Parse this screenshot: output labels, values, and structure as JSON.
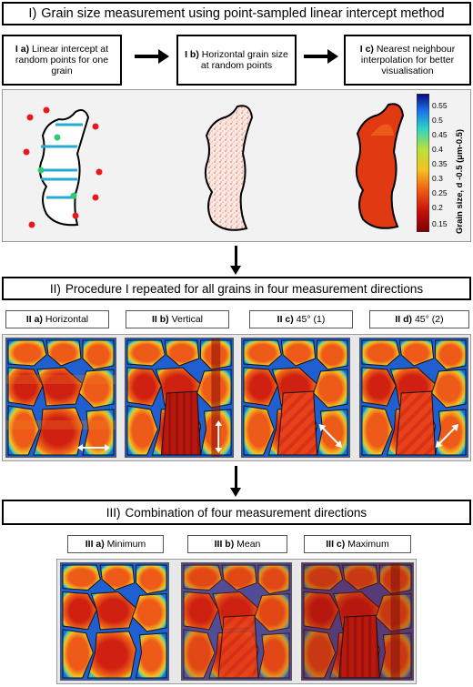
{
  "section1": {
    "prefix": "I)",
    "title": "Grain size measurement using point-sampled linear intercept method",
    "steps": [
      {
        "prefix": "I a)",
        "text": "Linear intercept at random points for one grain"
      },
      {
        "prefix": "I b)",
        "text": "Horizontal grain size at random points"
      },
      {
        "prefix": "I c)",
        "text": "Nearest neighbour interpolation for better visualisation"
      }
    ],
    "colorbar": {
      "ticks": [
        "0.55",
        "0.5",
        "0.45",
        "0.4",
        "0.35",
        "0.3",
        "0.25",
        "0.2",
        "0.15"
      ],
      "label": "Grain size, d -0.5 (μm-0.5)"
    }
  },
  "section2": {
    "prefix": "II)",
    "title": "Procedure I repeated for all grains in four measurement directions",
    "panels": [
      {
        "prefix": "II a)",
        "text": "Horizontal"
      },
      {
        "prefix": "II b)",
        "text": "Vertical"
      },
      {
        "prefix": "II c)",
        "text": "45° (1)"
      },
      {
        "prefix": "II d)",
        "text": "45° (2)"
      }
    ]
  },
  "section3": {
    "prefix": "III)",
    "title": "Combination of four measurement directions",
    "panels": [
      {
        "prefix": "III a)",
        "text": "Minimum"
      },
      {
        "prefix": "III b)",
        "text": "Mean"
      },
      {
        "prefix": "III c)",
        "text": "Maximum"
      }
    ]
  },
  "colors": {
    "low": "#8b0000",
    "mid": "#ff4500",
    "high": "#f4d03f",
    "highest": "#00bcd4",
    "dot_red": "#e41a1c",
    "line_blue": "#29a9d6",
    "dot_green": "#2ecc71"
  }
}
